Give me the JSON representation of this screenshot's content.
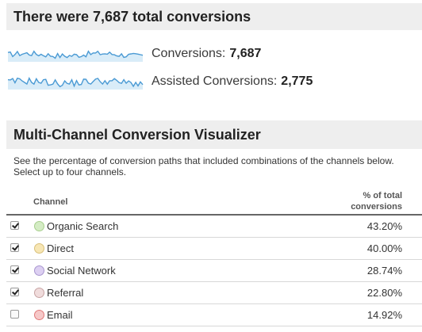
{
  "summary": {
    "title": "There were 7,687 total conversions",
    "metrics": [
      {
        "label": "Conversions:",
        "value": "7,687",
        "spark_icon": "sparkline-icon"
      },
      {
        "label": "Assisted Conversions:",
        "value": "2,775",
        "spark_icon": "sparkline-icon"
      }
    ],
    "spark_color": "#4a9ad4"
  },
  "visualizer": {
    "title": "Multi-Channel Conversion Visualizer",
    "description": "See the percentage of conversion paths that included combinations of the channels below. Select up to four channels.",
    "columns": {
      "channel": "Channel",
      "pct_line1": "% of total",
      "pct_line2": "conversions"
    },
    "channels": [
      {
        "name": "Organic Search",
        "pct": "43.20%",
        "checked": true,
        "fill": "#d4ecc4",
        "stroke": "#a8cf8e"
      },
      {
        "name": "Direct",
        "pct": "40.00%",
        "checked": true,
        "fill": "#f7e6b4",
        "stroke": "#d9c07a"
      },
      {
        "name": "Social Network",
        "pct": "28.74%",
        "checked": true,
        "fill": "#ddd0f2",
        "stroke": "#a896cf"
      },
      {
        "name": "Referral",
        "pct": "22.80%",
        "checked": true,
        "fill": "#f0dcdc",
        "stroke": "#c7a3a3"
      },
      {
        "name": "Email",
        "pct": "14.92%",
        "checked": false,
        "fill": "#f6c8c8",
        "stroke": "#e07a7a"
      }
    ]
  }
}
